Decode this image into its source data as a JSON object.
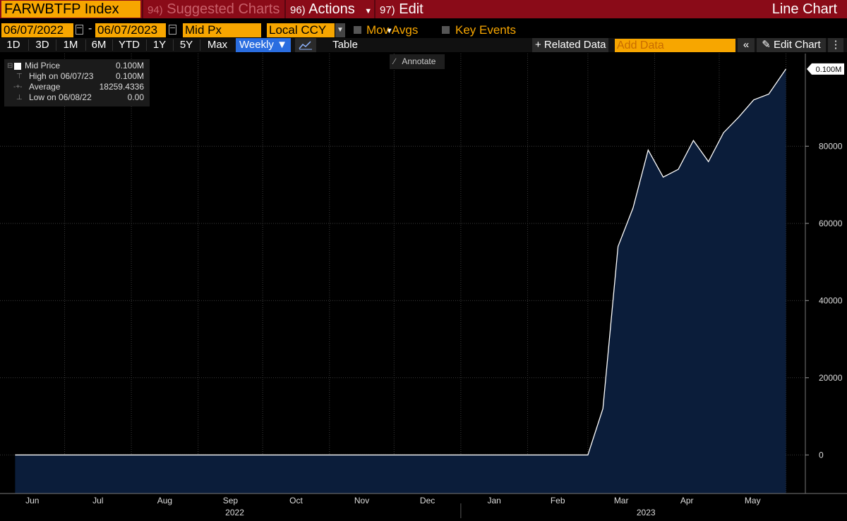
{
  "titlebar": {
    "ticker": "FARWBTFP Index",
    "menus": [
      {
        "num": "94)",
        "label": "Suggested Charts",
        "dropdown": false
      },
      {
        "num": "96)",
        "label": "Actions",
        "dropdown": true
      },
      {
        "num": "97)",
        "label": "Edit",
        "dropdown": true
      }
    ],
    "chart_type": "Line Chart"
  },
  "params": {
    "start_date": "06/07/2022",
    "separator": "-",
    "end_date": "06/07/2023",
    "field": "Mid Px",
    "currency": "Local CCY",
    "mov_avgs": "Mov Avgs",
    "key_events": "Key Events"
  },
  "toolbar": {
    "ranges": [
      "1D",
      "3D",
      "1M",
      "6M",
      "YTD",
      "1Y",
      "5Y",
      "Max"
    ],
    "period": "Weekly ▼",
    "table": "Table",
    "related": "+ Related Data",
    "add_data_placeholder": "Add Data",
    "collapse": "«",
    "edit_chart": "✎ Edit Chart",
    "more": "⋮"
  },
  "annotate": "Annotate",
  "legend": {
    "series": "Mid Price",
    "series_value": "0.100M",
    "rows": [
      {
        "label": "High on 06/07/23",
        "value": "0.100M"
      },
      {
        "label": "Average",
        "value": "18259.4336"
      },
      {
        "label": "Low on 06/08/22",
        "value": "0.00"
      }
    ]
  },
  "colors": {
    "titlebar": "#8a0b18",
    "accent": "#f7a600",
    "active": "#2a6de0",
    "fill": "#0b1d3a",
    "line": "#ffffff"
  },
  "chart_data": {
    "type": "area",
    "x_labels": [
      "Jun",
      "Jul",
      "Aug",
      "Sep",
      "Oct",
      "Nov",
      "Dec",
      "Jan",
      "Feb",
      "Mar",
      "Apr",
      "May"
    ],
    "year_labels": [
      "2022",
      "2023"
    ],
    "y_ticks": [
      0,
      20000,
      40000,
      60000,
      80000
    ],
    "last_value_label": "0.100M",
    "ylim": [
      -10000,
      104000
    ],
    "xlim": [
      "2022-06-01",
      "2023-06-10"
    ],
    "grid": true,
    "series": [
      {
        "name": "Mid Price",
        "points": [
          {
            "x": "2022-06-08",
            "y": 0
          },
          {
            "x": "2023-03-01",
            "y": 0
          },
          {
            "x": "2023-03-08",
            "y": 12000
          },
          {
            "x": "2023-03-15",
            "y": 54000
          },
          {
            "x": "2023-03-22",
            "y": 64000
          },
          {
            "x": "2023-03-29",
            "y": 79000
          },
          {
            "x": "2023-04-05",
            "y": 72000
          },
          {
            "x": "2023-04-12",
            "y": 74000
          },
          {
            "x": "2023-04-19",
            "y": 81500
          },
          {
            "x": "2023-04-26",
            "y": 76000
          },
          {
            "x": "2023-05-03",
            "y": 83500
          },
          {
            "x": "2023-05-10",
            "y": 87500
          },
          {
            "x": "2023-05-17",
            "y": 92000
          },
          {
            "x": "2023-05-24",
            "y": 93500
          },
          {
            "x": "2023-06-01",
            "y": 100000
          }
        ]
      }
    ]
  }
}
